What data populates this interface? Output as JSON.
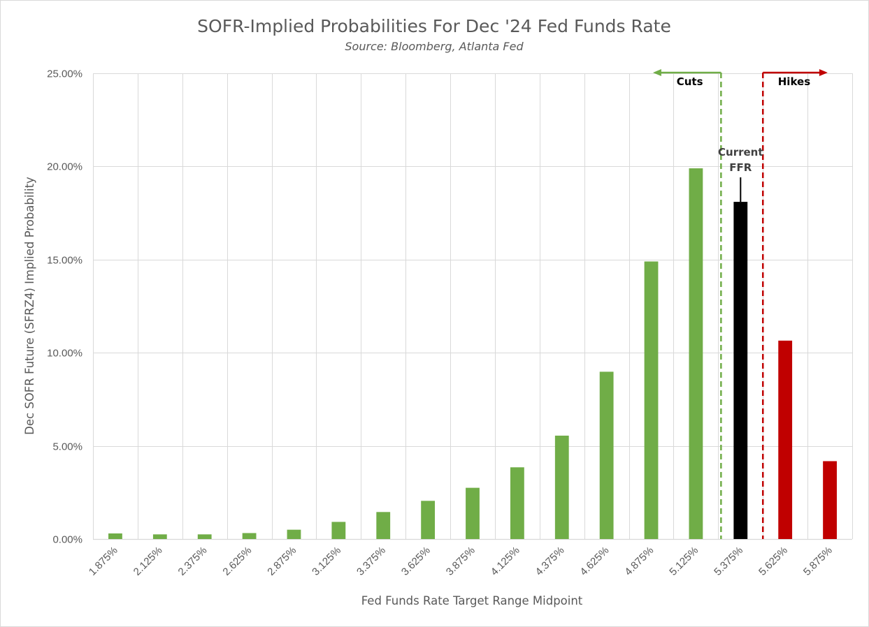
{
  "chart_data": {
    "type": "bar",
    "title": "SOFR-Implied Probabilities For Dec '24 Fed Funds Rate",
    "subtitle": "Source: Bloomberg, Atlanta Fed",
    "xlabel": "Fed Funds Rate Target Range Midpoint",
    "ylabel": "Dec SOFR Future (SFRZ4) Implied Probability",
    "categories": [
      "1.875%",
      "2.125%",
      "2.375%",
      "2.625%",
      "2.875%",
      "3.125%",
      "3.375%",
      "3.625%",
      "3.875%",
      "4.125%",
      "4.375%",
      "4.625%",
      "4.875%",
      "5.125%",
      "5.375%",
      "5.625%",
      "5.875%"
    ],
    "values": [
      0.3,
      0.25,
      0.25,
      0.32,
      0.5,
      0.92,
      1.45,
      2.05,
      2.75,
      3.85,
      5.55,
      8.98,
      14.9,
      19.9,
      18.1,
      10.65,
      4.18
    ],
    "bar_colors": [
      "#70ad47",
      "#70ad47",
      "#70ad47",
      "#70ad47",
      "#70ad47",
      "#70ad47",
      "#70ad47",
      "#70ad47",
      "#70ad47",
      "#70ad47",
      "#70ad47",
      "#70ad47",
      "#70ad47",
      "#70ad47",
      "#000000",
      "#c00000",
      "#c00000"
    ],
    "ylim": [
      0,
      25
    ],
    "yticks": [
      "0.00%",
      "5.00%",
      "10.00%",
      "15.00%",
      "20.00%",
      "25.00%"
    ],
    "ytick_values": [
      0,
      5,
      10,
      15,
      20,
      25
    ],
    "grid": true,
    "legend": "none",
    "annotations": {
      "cuts_label": "Cuts",
      "hikes_label": "Hikes",
      "current_line1": "Current",
      "current_line2": "FFR"
    },
    "colors": {
      "cuts": "#70ad47",
      "current": "#000000",
      "hikes": "#c00000",
      "text": "#595959",
      "grid": "#d9d9d9"
    }
  }
}
